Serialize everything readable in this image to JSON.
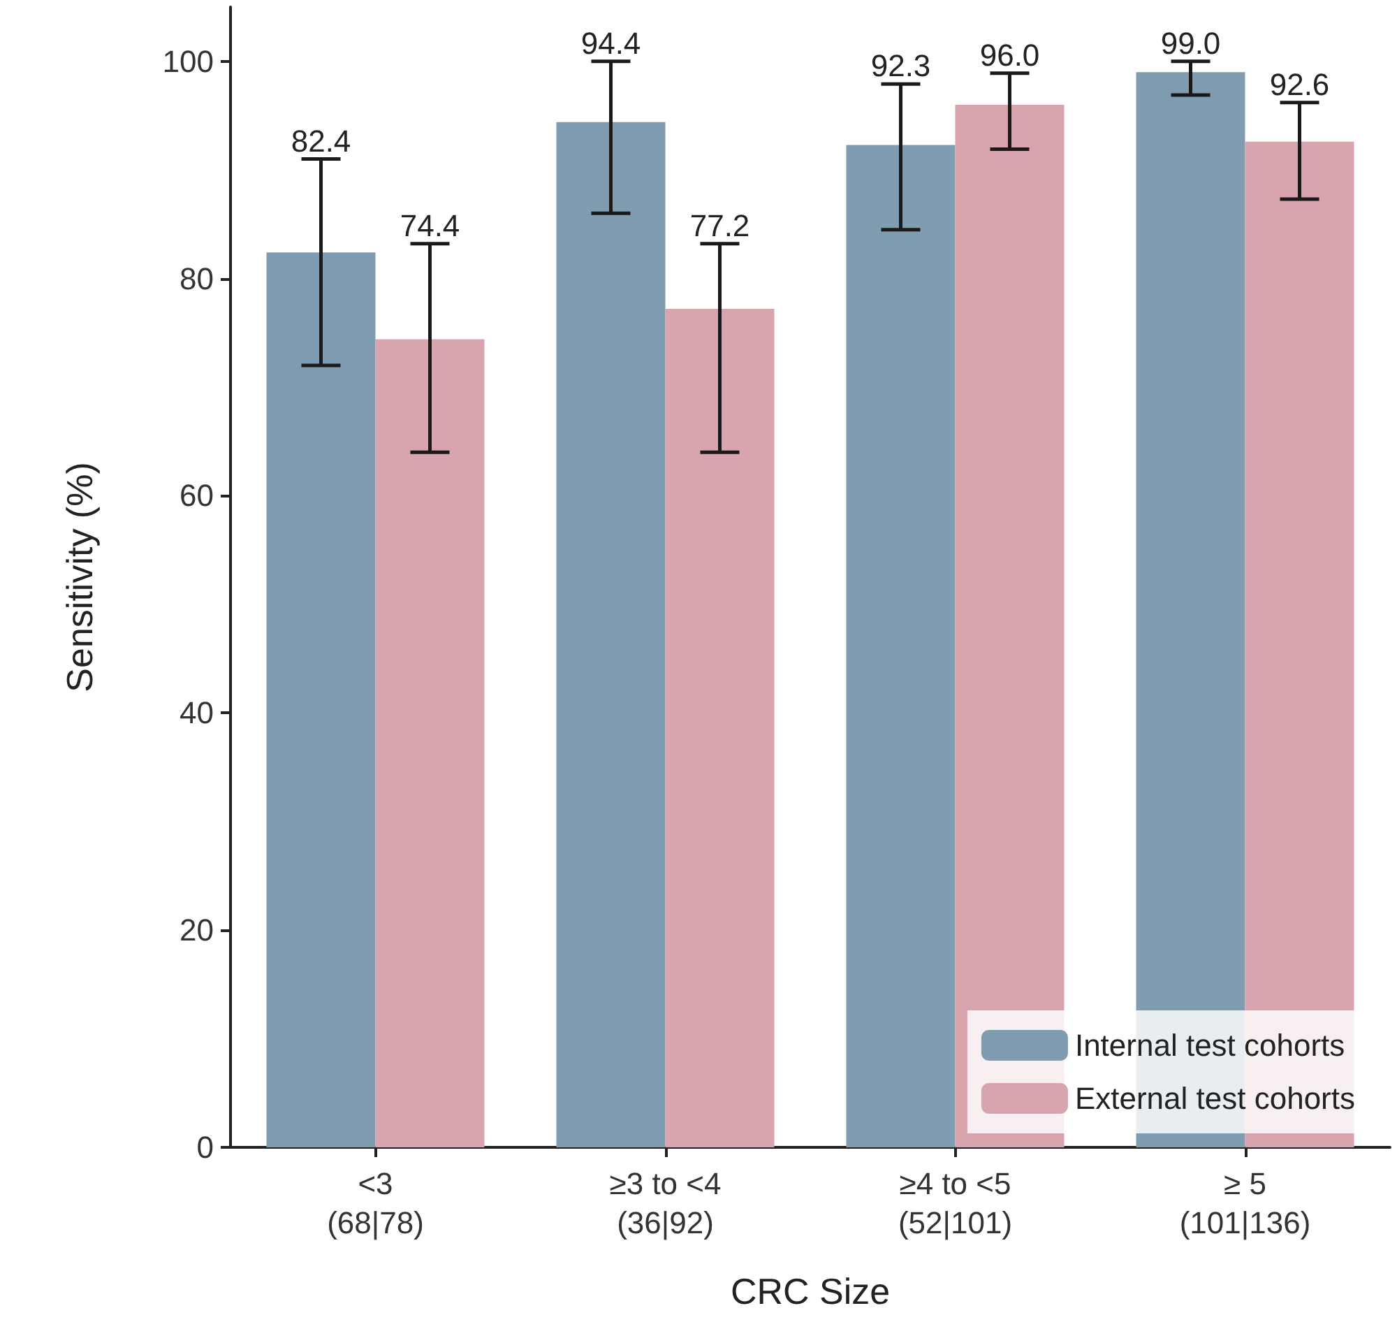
{
  "chart_data": {
    "type": "bar",
    "xlabel": "CRC Size",
    "ylabel": "Sensitivity (%)",
    "categories": [
      "<3\n(68|78)",
      "≥3 to <4\n(36|92)",
      "≥4 to <5\n(52|101)",
      "≥ 5\n(101|136)"
    ],
    "series": [
      {
        "name": "Internal test cohorts",
        "color": "#7f9cb0",
        "values": [
          82.4,
          94.4,
          92.3,
          99.0
        ],
        "value_labels": [
          "82.4",
          "94.4",
          "92.3",
          "99.0"
        ],
        "errors": [
          [
            72.0,
            91.0
          ],
          [
            86.0,
            100.0
          ],
          [
            84.5,
            97.9
          ],
          [
            96.9,
            100.0
          ]
        ]
      },
      {
        "name": "External test cohorts",
        "color": "#d8a4ad",
        "values": [
          74.4,
          77.2,
          96.0,
          92.6
        ],
        "value_labels": [
          "74.4",
          "77.2",
          "96.0",
          "92.6"
        ],
        "errors": [
          [
            64.0,
            83.2
          ],
          [
            64.0,
            83.2
          ],
          [
            91.9,
            98.9
          ],
          [
            87.3,
            96.2
          ]
        ]
      }
    ],
    "ylim": [
      0,
      105
    ],
    "yticks": [
      0,
      20,
      40,
      60,
      80,
      100
    ],
    "grid": false,
    "legend": "bottom right"
  }
}
